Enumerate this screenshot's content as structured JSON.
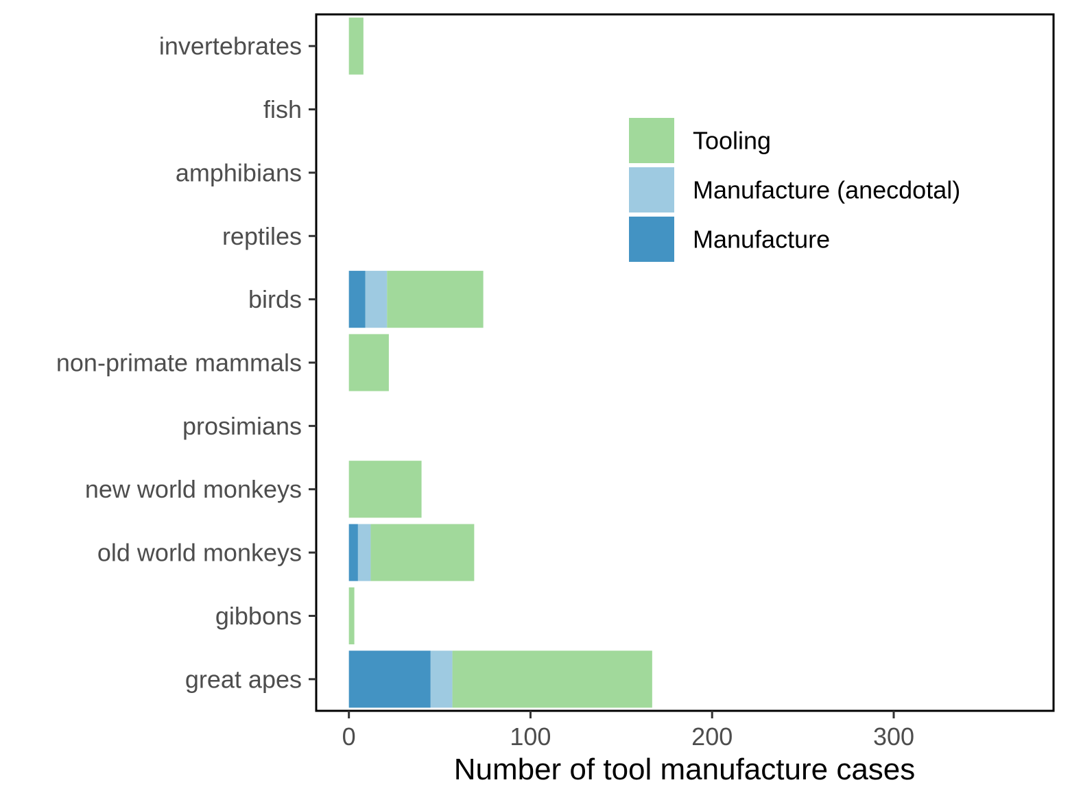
{
  "chart_data": {
    "type": "bar",
    "orientation": "horizontal",
    "stacked": true,
    "xlabel": "Number of tool manufacture cases",
    "ylabel": "",
    "xlim": [
      -18,
      388
    ],
    "x_ticks": [
      0,
      100,
      200,
      300
    ],
    "grid": false,
    "legend_position": "top-right",
    "categories": [
      "invertebrates",
      "fish",
      "amphibians",
      "reptiles",
      "birds",
      "non-primate mammals",
      "prosimians",
      "new world monkeys",
      "old world monkeys",
      "gibbons",
      "great apes"
    ],
    "series": [
      {
        "name": "Manufacture",
        "color": "#4393c3",
        "values": [
          0,
          0,
          0,
          0,
          9,
          0,
          0,
          0,
          5,
          0,
          45
        ]
      },
      {
        "name": "Manufacture (anecdotal)",
        "color": "#9ecae1",
        "values": [
          0,
          0,
          0,
          0,
          12,
          0,
          0,
          0,
          7,
          0,
          12
        ]
      },
      {
        "name": "Tooling",
        "color": "#a1d99b",
        "values": [
          8,
          0,
          0,
          0,
          53,
          22,
          0,
          40,
          57,
          3,
          110
        ]
      }
    ],
    "legend_order": [
      "Tooling",
      "Manufacture (anecdotal)",
      "Manufacture"
    ]
  }
}
